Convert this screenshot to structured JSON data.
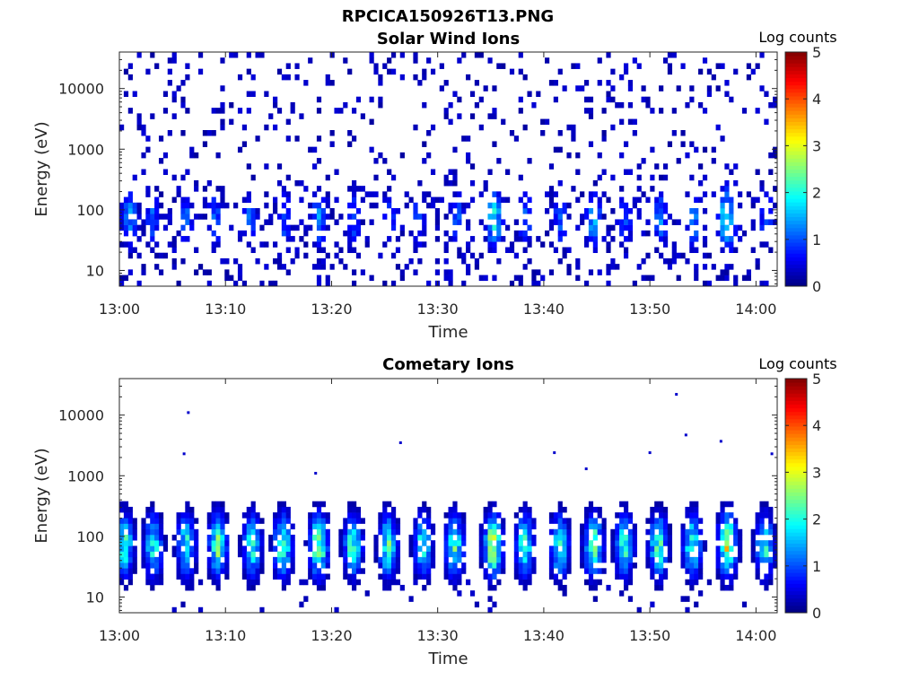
{
  "figure": {
    "title": "RPCICA150926T13.PNG"
  },
  "chart_data": [
    {
      "type": "heatmap",
      "title": "Solar Wind Ions",
      "xlabel": "Time",
      "ylabel": "Energy (eV)",
      "x_ticks": [
        "13:00",
        "13:10",
        "13:20",
        "13:30",
        "13:40",
        "13:50",
        "14:00"
      ],
      "x_range": [
        "13:00",
        "14:02"
      ],
      "y_scale": "log",
      "y_ticks": [
        10,
        100,
        1000,
        10000
      ],
      "y_tick_labels": [
        "10",
        "100",
        "1000",
        "10000"
      ],
      "y_range": [
        5.5,
        40000
      ],
      "colorbar": {
        "label": "Log counts",
        "min": 0,
        "max": 5,
        "ticks": [
          "0",
          "1",
          "2",
          "3",
          "4",
          "5"
        ],
        "colormap": "jet"
      },
      "bursts": [
        {
          "t": 1.0,
          "c": 1.3
        },
        {
          "t": 3.1,
          "c": 1.0
        },
        {
          "t": 6.3,
          "c": 1.0
        },
        {
          "t": 9.0,
          "c": 1.0
        },
        {
          "t": 12.3,
          "c": 1.0
        },
        {
          "t": 15.5,
          "c": 1.0
        },
        {
          "t": 18.8,
          "c": 1.2
        },
        {
          "t": 22.0,
          "c": 1.0
        },
        {
          "t": 25.5,
          "c": 1.0
        },
        {
          "t": 28.2,
          "c": 1.0
        },
        {
          "t": 31.8,
          "c": 1.0
        },
        {
          "t": 35.3,
          "c": 1.8
        },
        {
          "t": 38.3,
          "c": 1.0
        },
        {
          "t": 41.5,
          "c": 1.0
        },
        {
          "t": 44.7,
          "c": 1.4
        },
        {
          "t": 47.6,
          "c": 1.0
        },
        {
          "t": 51.0,
          "c": 1.2
        },
        {
          "t": 54.2,
          "c": 1.2
        },
        {
          "t": 57.3,
          "c": 2.0
        },
        {
          "t": 61.0,
          "c": 1.0
        }
      ],
      "background_level": 0.2
    },
    {
      "type": "heatmap",
      "title": "Cometary Ions",
      "xlabel": "Time",
      "ylabel": "Energy (eV)",
      "x_ticks": [
        "13:00",
        "13:10",
        "13:20",
        "13:30",
        "13:40",
        "13:50",
        "14:00"
      ],
      "x_range": [
        "13:00",
        "14:02"
      ],
      "y_scale": "log",
      "y_ticks": [
        10,
        100,
        1000,
        10000
      ],
      "y_tick_labels": [
        "10",
        "100",
        "1000",
        "10000"
      ],
      "y_range": [
        5.5,
        40000
      ],
      "colorbar": {
        "label": "Log counts",
        "min": 0,
        "max": 5,
        "ticks": [
          "0",
          "1",
          "2",
          "3",
          "4",
          "5"
        ],
        "colormap": "jet"
      },
      "bursts": [
        {
          "t": 0.5,
          "c": 2.0
        },
        {
          "t": 3.2,
          "c": 1.9
        },
        {
          "t": 6.3,
          "c": 1.9
        },
        {
          "t": 9.3,
          "c": 2.3
        },
        {
          "t": 12.5,
          "c": 1.9
        },
        {
          "t": 15.4,
          "c": 2.2
        },
        {
          "t": 18.8,
          "c": 2.5
        },
        {
          "t": 22.0,
          "c": 2.1
        },
        {
          "t": 25.3,
          "c": 2.1
        },
        {
          "t": 28.6,
          "c": 1.9
        },
        {
          "t": 31.6,
          "c": 2.1
        },
        {
          "t": 35.2,
          "c": 2.8
        },
        {
          "t": 38.2,
          "c": 2.1
        },
        {
          "t": 41.5,
          "c": 2.0
        },
        {
          "t": 44.7,
          "c": 2.4
        },
        {
          "t": 47.6,
          "c": 2.0
        },
        {
          "t": 50.8,
          "c": 2.2
        },
        {
          "t": 54.0,
          "c": 2.1
        },
        {
          "t": 57.3,
          "c": 2.8
        },
        {
          "t": 60.8,
          "c": 2.0
        }
      ],
      "outliers": [
        {
          "t": 6.5,
          "e": 11000
        },
        {
          "t": 6.1,
          "e": 2300
        },
        {
          "t": 26.5,
          "e": 3500
        },
        {
          "t": 18.5,
          "e": 1100
        },
        {
          "t": 52.5,
          "e": 22000
        },
        {
          "t": 53.4,
          "e": 4700
        },
        {
          "t": 56.7,
          "e": 3700
        },
        {
          "t": 50.0,
          "e": 2400
        },
        {
          "t": 41.0,
          "e": 2400
        },
        {
          "t": 61.5,
          "e": 2300
        },
        {
          "t": 44.0,
          "e": 1300
        }
      ]
    }
  ]
}
